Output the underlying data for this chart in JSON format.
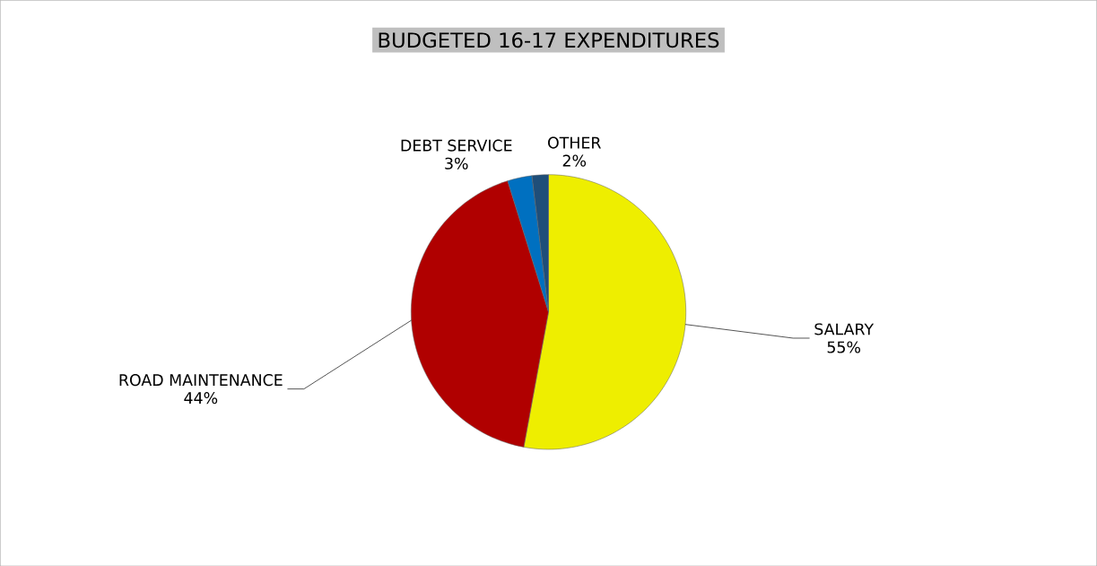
{
  "chart_data": {
    "type": "pie",
    "title": "BUDGETED 16-17 EXPENDITURES",
    "categories": [
      "SALARY",
      "ROAD MAINTENANCE",
      "DEBT SERVICE",
      "OTHER"
    ],
    "values": [
      55,
      44,
      3,
      2
    ],
    "value_labels": [
      "55%",
      "44%",
      "3%",
      "2%"
    ],
    "colors": [
      "#eeee00",
      "#b00000",
      "#0070c0",
      "#1f4e79"
    ]
  }
}
